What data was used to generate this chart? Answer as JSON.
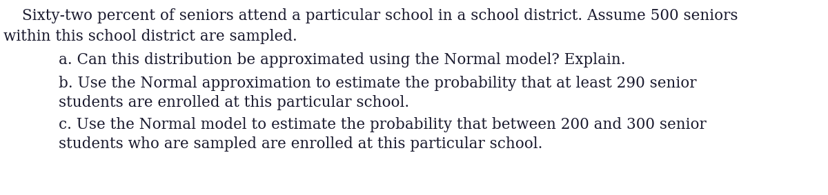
{
  "background_color": "#ffffff",
  "text_color": "#1a1a2e",
  "font_size": 15.5,
  "font_family": "DejaVu Serif",
  "line1": "Sixty-two percent of seniors attend a particular school in a school district. Assume 500 seniors",
  "line2": "within this school district are sampled.",
  "line_a": "a. Can this distribution be approximated using the Normal model? Explain.",
  "line_b1": "b. Use the Normal approximation to estimate the probability that at least 290 senior",
  "line_b2": "students are enrolled at this particular school.",
  "line_c1": "c. Use the Normal model to estimate the probability that between 200 and 300 senior",
  "line_c2": "students who are sampled are enrolled at this particular school.",
  "figwidth": 12.0,
  "figheight": 2.83,
  "dpi": 100
}
